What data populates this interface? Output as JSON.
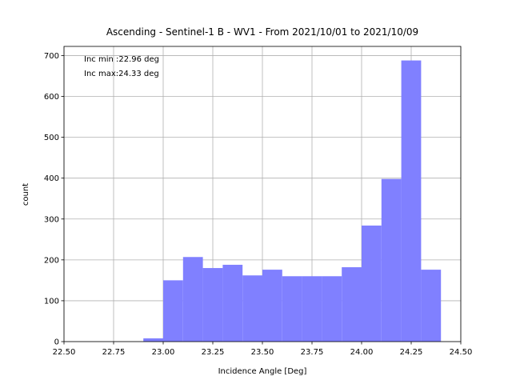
{
  "chart_data": {
    "type": "histogram",
    "title": "Ascending - Sentinel-1 B - WV1 - From 2021/10/01 to 2021/10/09",
    "x_label": "Incidence Angle [Deg]",
    "y_label": "count",
    "annotations": [
      "Inc min :22.96 deg",
      "Inc max:24.33 deg"
    ],
    "bins": [
      22.9,
      23.0,
      23.1,
      23.2,
      23.3,
      23.4,
      23.5,
      23.6,
      23.7,
      23.8,
      23.9,
      24.0,
      24.1,
      24.2,
      24.3,
      24.4
    ],
    "values": [
      8,
      150,
      207,
      180,
      188,
      162,
      176,
      160,
      160,
      160,
      182,
      284,
      398,
      688,
      176
    ],
    "color": "#8080ff",
    "xlim": [
      22.5,
      24.5
    ],
    "xticks": [
      {
        "value": 22.5,
        "label": "22.50"
      },
      22.75,
      {
        "value": 23.0,
        "label": "23.00"
      },
      23.25,
      {
        "value": 23.5,
        "label": "23.50"
      },
      23.75,
      {
        "value": 24.0,
        "label": "24.00"
      },
      24.25,
      {
        "value": 24.5,
        "label": "24.50"
      }
    ],
    "ylim": [
      0,
      722.4
    ],
    "yticks": [
      0,
      100,
      200,
      300,
      400,
      500,
      600,
      700
    ],
    "grid": true
  }
}
